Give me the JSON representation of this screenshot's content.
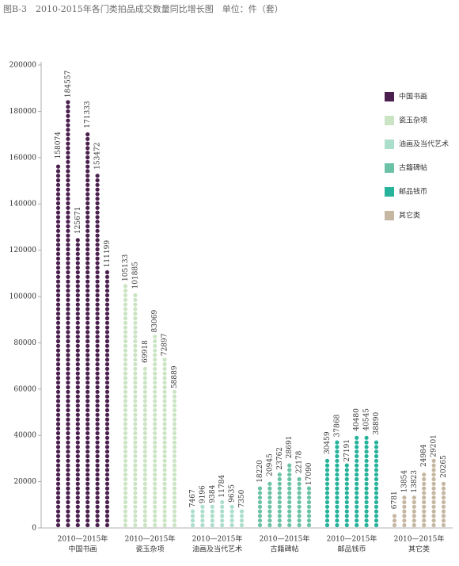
{
  "chart_data": {
    "type": "dot-column",
    "title": "图B-3　2010-2015年各门类拍品成交数量同比增长图　单位：件（套）",
    "group_label": "2010—2015年",
    "ylim": [
      0,
      200000
    ],
    "yticks": [
      0,
      20000,
      40000,
      60000,
      80000,
      100000,
      120000,
      140000,
      160000,
      180000,
      200000
    ],
    "legend": "top-right",
    "series": [
      {
        "name": "中国书画",
        "color": "#4b1f4e",
        "values": [
          158074,
          184557,
          125671,
          171333,
          153472,
          111199
        ]
      },
      {
        "name": "瓷玉杂项",
        "color": "#cbe5c4",
        "values": [
          105133,
          101885,
          69918,
          83069,
          72897,
          58889
        ]
      },
      {
        "name": "油画及当代艺术",
        "color": "#acdfcb",
        "values": [
          7467,
          9196,
          9384,
          11784,
          9635,
          7350
        ]
      },
      {
        "name": "古籍碑帖",
        "color": "#6cc2a6",
        "values": [
          18220,
          20945,
          23762,
          28691,
          22178,
          17090
        ]
      },
      {
        "name": "邮品钱币",
        "color": "#27b29b",
        "values": [
          30459,
          37868,
          27191,
          40480,
          40545,
          38890
        ]
      },
      {
        "name": "其它类",
        "color": "#c6b7a2",
        "values": [
          6781,
          13854,
          13823,
          24984,
          29201,
          20265
        ]
      }
    ]
  }
}
